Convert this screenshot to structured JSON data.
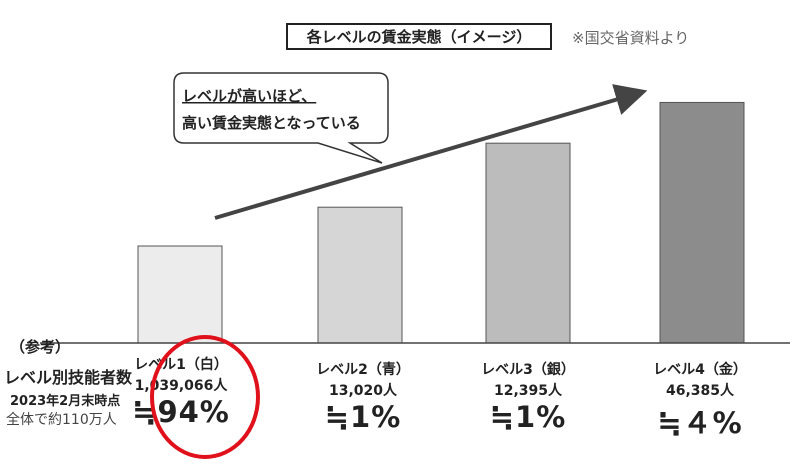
{
  "title": "各レベルの賃金実態（イメージ）",
  "source": "※国交省資料より",
  "callout": {
    "line1": "レベルが高いほど、",
    "line2": "高い賃金実態となっている"
  },
  "left_labels": {
    "reference": "（参考）",
    "main": "レベル別技能者数",
    "date": "2023年2月末時点",
    "total": "全体で約110万人"
  },
  "colors": {
    "bars": [
      "#ececec",
      "#d6d6d6",
      "#bcbcbc",
      "#8c8c8c"
    ],
    "highlight": "#e0111b"
  },
  "chart_data": {
    "type": "bar",
    "categories": [
      "レベル1（白）",
      "レベル2（青）",
      "レベル3（銀）",
      "レベル4（金）"
    ],
    "values": [
      1,
      1.4,
      2.06,
      2.48
    ],
    "counts": [
      "1,039,066人",
      "13,020人",
      "12,395人",
      "46,385人"
    ],
    "shares": [
      "≒94%",
      "≒1%",
      "≒1%",
      "≒４%"
    ],
    "title": "各レベルの賃金実態（イメージ）",
    "grid": false,
    "legend": "none"
  }
}
